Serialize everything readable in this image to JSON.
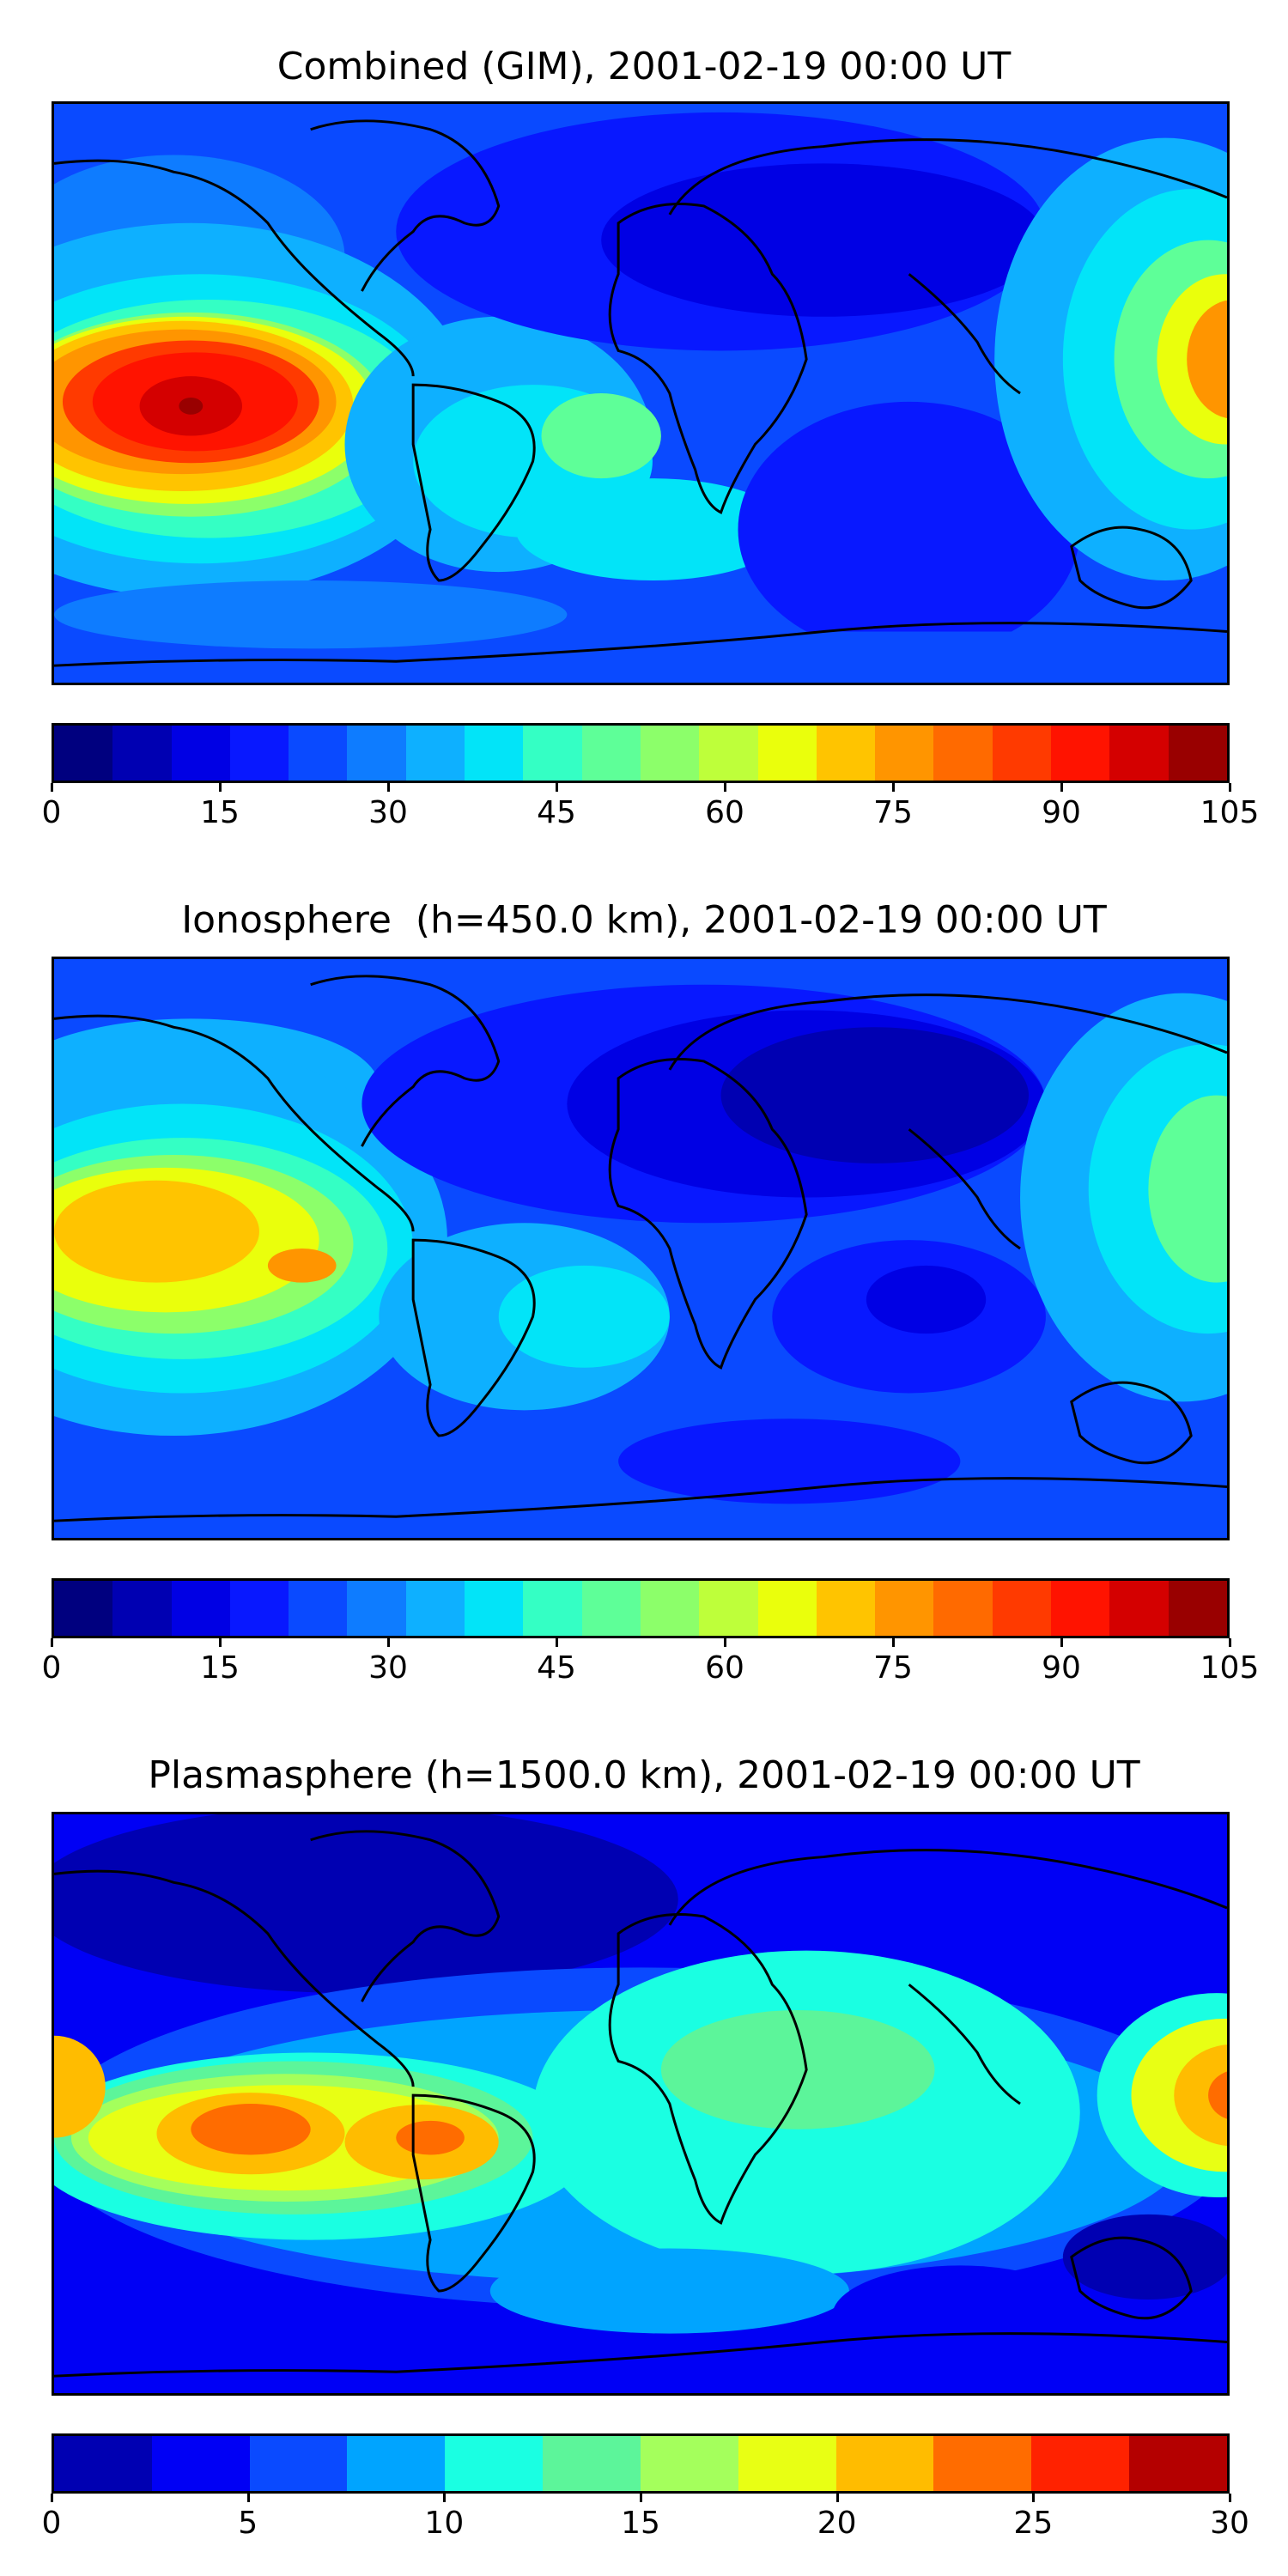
{
  "panels": [
    {
      "title": "Combined (GIM), 2001-02-19 00:00 UT",
      "colorbar": {
        "min": 0,
        "max": 105,
        "ticks": [
          "0",
          "15",
          "30",
          "45",
          "60",
          "75",
          "90",
          "105"
        ],
        "colors": [
          "#00007f",
          "#0000b2",
          "#0000e4",
          "#0818ff",
          "#0a4aff",
          "#0e7cff",
          "#0eb0ff",
          "#02e4f8",
          "#34ffc4",
          "#5eff98",
          "#8cff6a",
          "#beff3a",
          "#eaff0c",
          "#ffc400",
          "#ff9500",
          "#ff6a00",
          "#ff3a00",
          "#ff1300",
          "#d40000",
          "#990000"
        ]
      }
    },
    {
      "title": "Ionosphere  (h=450.0 km), 2001-02-19 00:00 UT",
      "colorbar": {
        "min": 0,
        "max": 105,
        "ticks": [
          "0",
          "15",
          "30",
          "45",
          "60",
          "75",
          "90",
          "105"
        ],
        "colors": [
          "#00007f",
          "#0000b2",
          "#0000e4",
          "#0818ff",
          "#0a4aff",
          "#0e7cff",
          "#0eb0ff",
          "#02e4f8",
          "#34ffc4",
          "#5eff98",
          "#8cff6a",
          "#beff3a",
          "#eaff0c",
          "#ffc400",
          "#ff9500",
          "#ff6a00",
          "#ff3a00",
          "#ff1300",
          "#d40000",
          "#990000"
        ]
      }
    },
    {
      "title": "Plasmasphere (h=1500.0 km), 2001-02-19 00:00 UT",
      "colorbar": {
        "min": 0,
        "max": 30,
        "ticks": [
          "0",
          "5",
          "10",
          "15",
          "20",
          "25",
          "30"
        ],
        "colors": [
          "#0000b2",
          "#0000f5",
          "#0a4aff",
          "#00a4ff",
          "#1affe2",
          "#5cf59a",
          "#a4ff5c",
          "#e8ff14",
          "#ffbc00",
          "#ff6c00",
          "#ff2200",
          "#b40000"
        ]
      }
    }
  ]
}
